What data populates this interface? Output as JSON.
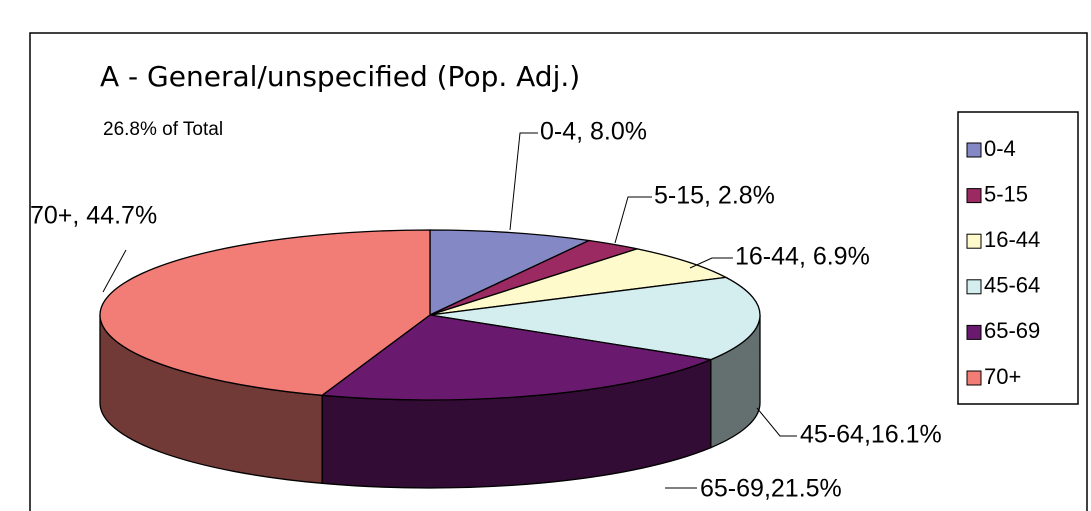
{
  "chart_data": {
    "type": "pie3d",
    "title": "A - General/unspecified (Pop. Adj.)",
    "subtitle": "26.8% of Total",
    "categories": [
      "0-4",
      "5-15",
      "16-44",
      "45-64",
      "65-69",
      "70+"
    ],
    "values": [
      8.0,
      2.8,
      6.9,
      16.1,
      21.5,
      44.7
    ],
    "value_labels": [
      "0-4, 8.0%",
      "5-15, 2.8%",
      "16-44, 6.9%",
      "45-64,16.1%",
      "65-69,21.5%",
      "70+, 44.7%"
    ],
    "colors": [
      "#8488c4",
      "#9b2a62",
      "#fffacc",
      "#d4edef",
      "#6a1a6e",
      "#f27c76"
    ],
    "legend": "right"
  }
}
